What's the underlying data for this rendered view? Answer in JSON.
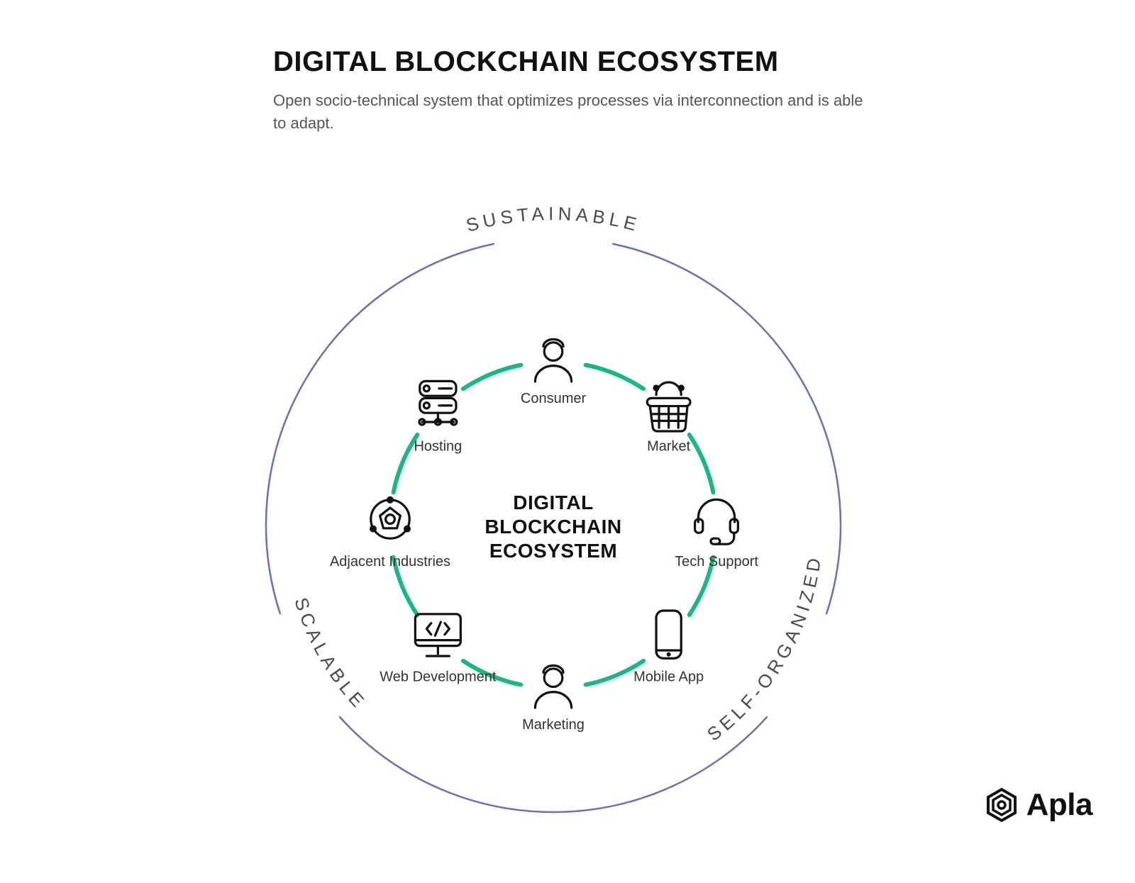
{
  "header": {
    "title": "DIGITAL BLOCKCHAIN ECOSYSTEM",
    "subtitle": "Open socio-technical system that optimizes processes via interconnection and is able to adapt."
  },
  "center": {
    "line1": "DIGITAL",
    "line2": "BLOCKCHAIN",
    "line3": "ECOSYSTEM"
  },
  "outer_labels": {
    "top": "SUSTAINABLE",
    "bottom_left": "SCALABLE",
    "bottom_right": "SELF-ORGANIZED"
  },
  "nodes": [
    {
      "id": "consumer",
      "label": "Consumer",
      "angle_deg": -90
    },
    {
      "id": "market",
      "label": "Market",
      "angle_deg": -45
    },
    {
      "id": "tech-support",
      "label": "Tech Support",
      "angle_deg": 0
    },
    {
      "id": "mobile-app",
      "label": "Mobile App",
      "angle_deg": 45
    },
    {
      "id": "marketing",
      "label": "Marketing",
      "angle_deg": 90
    },
    {
      "id": "web-dev",
      "label": "Web Development",
      "angle_deg": 135
    },
    {
      "id": "adjacent",
      "label": "Adjacent Industries",
      "angle_deg": 180
    },
    {
      "id": "hosting",
      "label": "Hosting",
      "angle_deg": -135
    }
  ],
  "style": {
    "background_color": "#ffffff",
    "outer_ring_color": "#6b6fb3",
    "outer_ring_stroke_width": 2.5,
    "outer_ring_radius": 405,
    "arc_gap_deg": 24,
    "inner_ring_color": "#18b885",
    "inner_ring_stroke_width": 6,
    "inner_ring_radius": 230,
    "node_gap_radius": 46,
    "icon_box": 80,
    "icon_stroke": "#111111",
    "text_color": "#333333",
    "title_color": "#111111",
    "subtitle_color": "#555555",
    "title_fontsize": 40,
    "subtitle_fontsize": 22,
    "outer_label_fontsize": 26,
    "center_fontsize": 28,
    "node_label_fontsize": 20,
    "svg_size": 1000,
    "svg_center": 500,
    "arc_centers_deg": [
      -90,
      30,
      150
    ],
    "outer_label_path_radius": 430,
    "outer_label_inner_path_radius": 380
  },
  "logo": {
    "name": "Apla"
  }
}
